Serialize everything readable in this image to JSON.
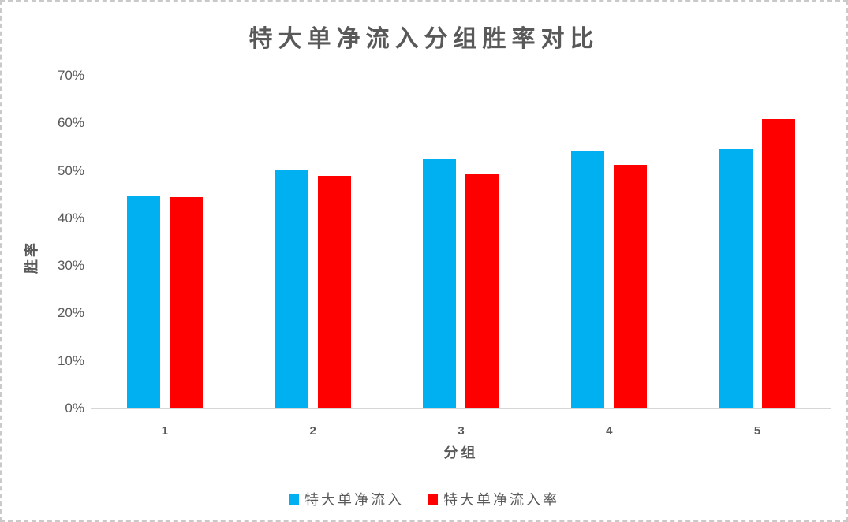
{
  "chart_data": {
    "type": "bar",
    "title": "特大单净流入分组胜率对比",
    "xlabel": "分组",
    "ylabel": "胜率",
    "categories": [
      "1",
      "2",
      "3",
      "4",
      "5"
    ],
    "series": [
      {
        "name": "特大单净流入",
        "color": "#00B0F0",
        "values": [
          44.8,
          50.2,
          52.5,
          54.0,
          54.6
        ]
      },
      {
        "name": "特大单净流入率",
        "color": "#FF0000",
        "values": [
          44.4,
          49.0,
          49.2,
          51.3,
          60.8
        ]
      }
    ],
    "ylim": [
      0,
      70
    ],
    "ytick_step": 10,
    "ytick_labels": [
      "0%",
      "10%",
      "20%",
      "30%",
      "40%",
      "50%",
      "60%",
      "70%"
    ],
    "unit": "percent",
    "grid": false,
    "legend_position": "bottom-center",
    "colors": {
      "text": "#595959",
      "axis_line": "#d6d6d6",
      "frame_border": "#c9c9c9",
      "background": "#ffffff"
    }
  }
}
